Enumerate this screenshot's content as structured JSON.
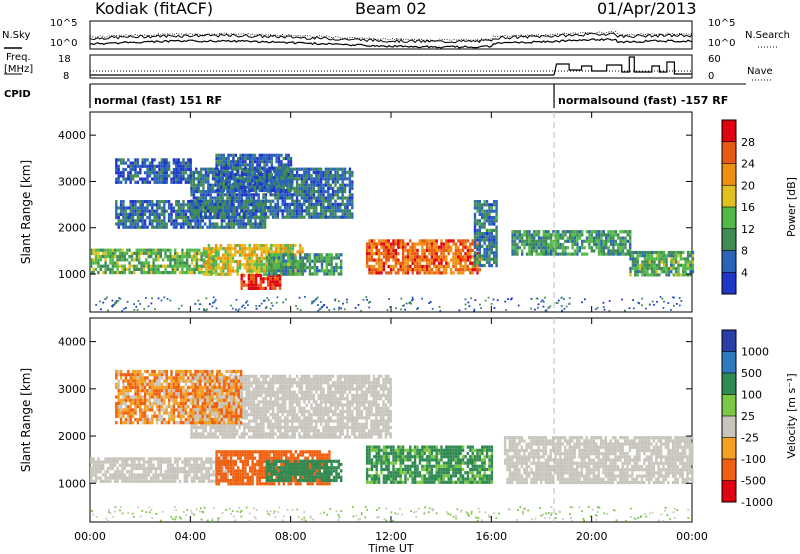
{
  "header": {
    "station": "Kodiak (fitACF)",
    "beam": "Beam 02",
    "date": "01/Apr/2013"
  },
  "strip_labels": {
    "nsky": "N.Sky",
    "nsky_ticks": [
      "10^5",
      "10^0"
    ],
    "nsearch": "N.Search",
    "nsearch_ticks": [
      "10^5",
      "10^0"
    ],
    "freq_line1": "Freq.",
    "freq_line2": "[MHz]",
    "freq_ticks": [
      "18",
      "8"
    ],
    "nave": "Nave",
    "nave_ticks": [
      "60",
      "0"
    ],
    "cpid": "CPID"
  },
  "cpid_segments": [
    {
      "start": "00:00",
      "end": "18:30",
      "label": "normal (fast) 151 RF"
    },
    {
      "start": "18:30",
      "end": "24:00",
      "label": "normalsound (fast) -157 RF"
    }
  ],
  "colors": {
    "power_scale": [
      "#2036c8",
      "#2a64b8",
      "#3f8b53",
      "#52b84a",
      "#e2c020",
      "#f09010",
      "#e85a10",
      "#e00010"
    ],
    "velocity_scale": [
      "#2a3ea8",
      "#2e7abf",
      "#2f8a52",
      "#7ac843",
      "#c8c6bc",
      "#f4a020",
      "#f06010",
      "#e00010"
    ],
    "ground_scatter": "#c8c6bc"
  },
  "chart_data": [
    {
      "type": "heatmap",
      "panel": "power",
      "title": "",
      "xlabel": "Time UT",
      "ylabel": "Slant Range [km]",
      "x_ticks": [
        "00:00",
        "04:00",
        "08:00",
        "12:00",
        "16:00",
        "20:00",
        "00:00"
      ],
      "y_ticks": [
        1000,
        2000,
        3000,
        4000
      ],
      "xlim": [
        0,
        24
      ],
      "ylim": [
        180,
        4500
      ],
      "colorbar": {
        "label": "Power [dB]",
        "ticks": [
          28,
          24,
          20,
          16,
          12,
          8,
          4
        ],
        "range": [
          0,
          32
        ]
      },
      "regions": [
        {
          "x0": 0.0,
          "x1": 5.0,
          "y0": 1050,
          "y1": 1550,
          "value": 13
        },
        {
          "x0": 4.5,
          "x1": 8.5,
          "y0": 1000,
          "y1": 1650,
          "value": 18
        },
        {
          "x0": 6.0,
          "x1": 7.6,
          "y0": 700,
          "y1": 1000,
          "value": 29
        },
        {
          "x0": 7.0,
          "x1": 10.0,
          "y0": 1000,
          "y1": 1450,
          "value": 11
        },
        {
          "x0": 11.0,
          "x1": 15.5,
          "y0": 1050,
          "y1": 1750,
          "value": 25
        },
        {
          "x0": 15.3,
          "x1": 16.2,
          "y0": 1200,
          "y1": 2600,
          "value": 8
        },
        {
          "x0": 16.8,
          "x1": 21.5,
          "y0": 1450,
          "y1": 1950,
          "value": 11
        },
        {
          "x0": 21.5,
          "x1": 24.0,
          "y0": 1000,
          "y1": 1500,
          "value": 12
        },
        {
          "x0": 1.0,
          "x1": 7.0,
          "y0": 2000,
          "y1": 2600,
          "value": 7
        },
        {
          "x0": 4.0,
          "x1": 10.5,
          "y0": 2200,
          "y1": 3300,
          "value": 7
        },
        {
          "x0": 5.0,
          "x1": 8.0,
          "y0": 2800,
          "y1": 3600,
          "value": 6
        },
        {
          "x0": 1.0,
          "x1": 4.0,
          "y0": 3000,
          "y1": 3500,
          "value": 5
        }
      ]
    },
    {
      "type": "heatmap",
      "panel": "velocity",
      "title": "",
      "xlabel": "Time UT",
      "ylabel": "Slant Range [km]",
      "x_ticks": [
        "00:00",
        "04:00",
        "08:00",
        "12:00",
        "16:00",
        "20:00",
        "00:00"
      ],
      "y_ticks": [
        1000,
        2000,
        3000,
        4000
      ],
      "xlim": [
        0,
        24
      ],
      "ylim": [
        180,
        4500
      ],
      "colorbar": {
        "label": "Velocity [m s^-1]",
        "ticks": [
          1000,
          500,
          100,
          25,
          -25,
          -100,
          -500,
          -1000
        ],
        "range": [
          -1000,
          1000
        ]
      },
      "regions": [
        {
          "x0": 0.0,
          "x1": 5.5,
          "y0": 1050,
          "y1": 1550,
          "value": 0,
          "ground_scatter": true
        },
        {
          "x0": 5.0,
          "x1": 9.5,
          "y0": 1000,
          "y1": 1700,
          "value": -300
        },
        {
          "x0": 7.0,
          "x1": 10.0,
          "y0": 1050,
          "y1": 1500,
          "value": 250
        },
        {
          "x0": 11.0,
          "x1": 16.0,
          "y0": 1050,
          "y1": 1800,
          "value": 150
        },
        {
          "x0": 16.5,
          "x1": 24.0,
          "y0": 1000,
          "y1": 2000,
          "value": 0,
          "ground_scatter": true
        },
        {
          "x0": 4.0,
          "x1": 12.0,
          "y0": 2000,
          "y1": 3300,
          "value": 0,
          "ground_scatter": true
        },
        {
          "x0": 1.0,
          "x1": 6.0,
          "y0": 2300,
          "y1": 3400,
          "value": -80
        }
      ]
    }
  ]
}
